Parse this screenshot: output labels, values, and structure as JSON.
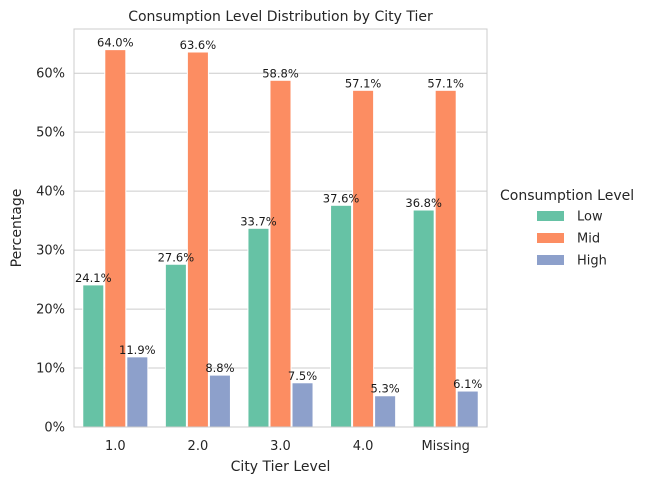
{
  "chart_data": {
    "type": "bar",
    "title": "Consumption Level Distribution by City Tier",
    "xlabel": "City Tier Level",
    "ylabel": "Percentage",
    "categories": [
      "1.0",
      "2.0",
      "3.0",
      "4.0",
      "Missing"
    ],
    "ylim": [
      0,
      67.5
    ],
    "yticks": [
      0,
      10,
      20,
      30,
      40,
      50,
      60
    ],
    "ytick_labels": [
      "0%",
      "10%",
      "20%",
      "30%",
      "40%",
      "50%",
      "60%"
    ],
    "grid": true,
    "legend": {
      "title": "Consumption Level",
      "placement": "right"
    },
    "series": [
      {
        "name": "Low",
        "color": "#66c2a5",
        "values": [
          24.1,
          27.6,
          33.7,
          37.6,
          36.8
        ],
        "labels": [
          "24.1%",
          "27.6%",
          "33.7%",
          "37.6%",
          "36.8%"
        ]
      },
      {
        "name": "Mid",
        "color": "#fc8d62",
        "values": [
          64.0,
          63.6,
          58.8,
          57.1,
          57.1
        ],
        "labels": [
          "64.0%",
          "63.6%",
          "58.8%",
          "57.1%",
          "57.1%"
        ]
      },
      {
        "name": "High",
        "color": "#8da0cb",
        "values": [
          11.9,
          8.8,
          7.5,
          5.3,
          6.1
        ],
        "labels": [
          "11.9%",
          "8.8%",
          "7.5%",
          "5.3%",
          "6.1%"
        ]
      }
    ]
  }
}
